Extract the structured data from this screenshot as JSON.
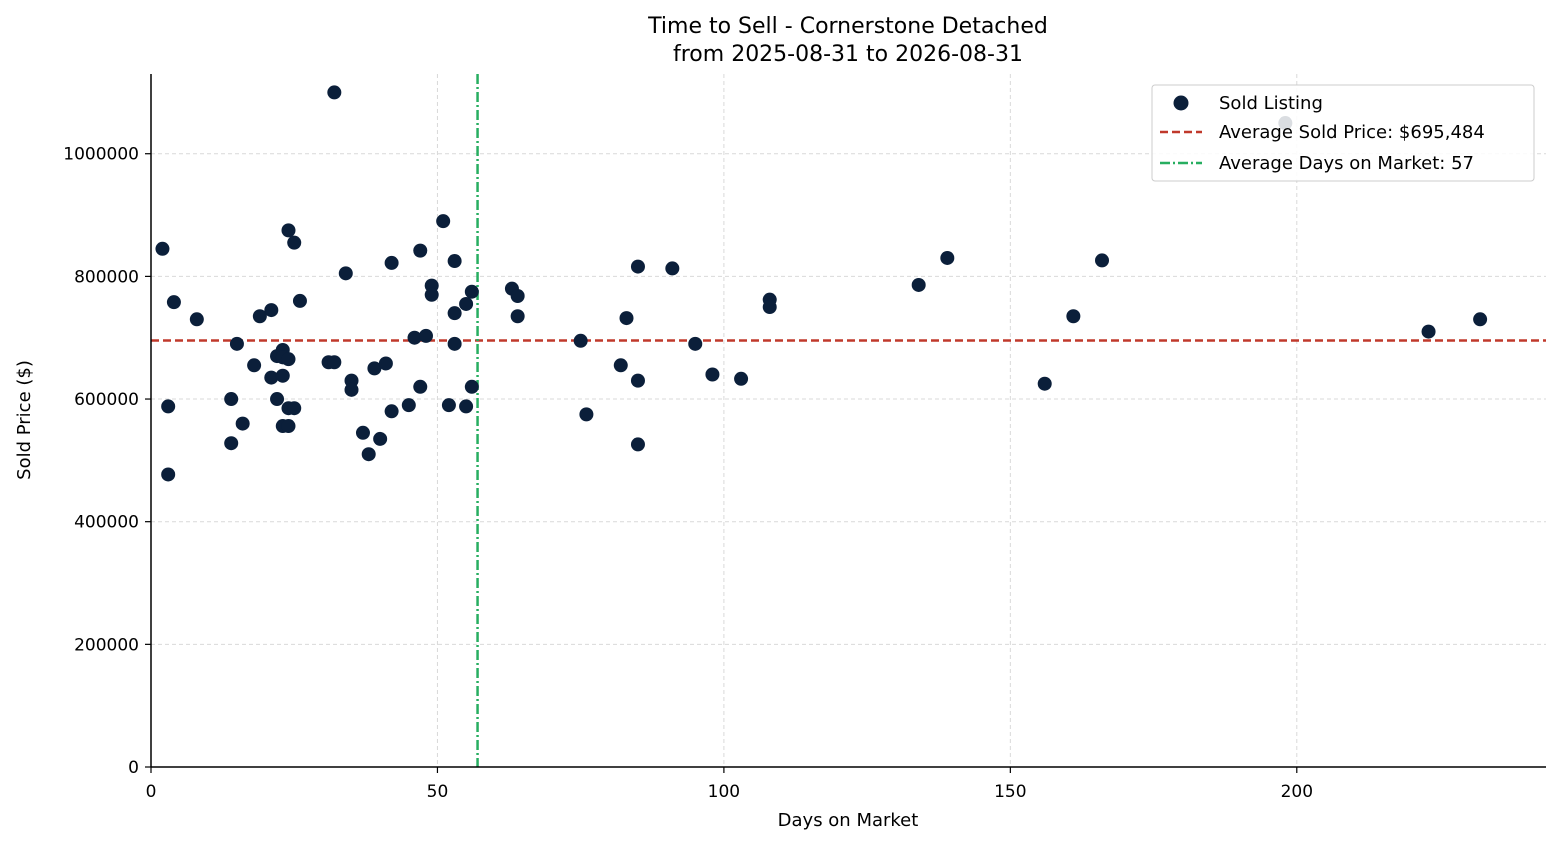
{
  "chart_data": {
    "type": "scatter",
    "title_line1": "Time to Sell - Cornerstone Detached",
    "title_line2": "from 2025-08-31 to 2026-08-31",
    "xlabel": "Days on Market",
    "ylabel": "Sold Price ($)",
    "xlim": [
      0,
      243.5
    ],
    "ylim": [
      0,
      1130000
    ],
    "x_ticks": [
      0,
      50,
      100,
      150,
      200
    ],
    "y_ticks": [
      0,
      200000,
      400000,
      600000,
      800000,
      1000000
    ],
    "grid": true,
    "legend_position": "top-right",
    "colors": {
      "points": "#0b1f3a",
      "avg_price_line": "#c0392b",
      "avg_days_line": "#27ae60"
    },
    "legend": {
      "points_label": "Sold Listing",
      "avg_price_label": "Average Sold Price: $695,484",
      "avg_days_label": "Average Days on Market: 57"
    },
    "avg_price": 695484,
    "avg_days": 57,
    "points": [
      [
        2,
        845000
      ],
      [
        3,
        588000
      ],
      [
        3,
        477000
      ],
      [
        4,
        758000
      ],
      [
        8,
        730000
      ],
      [
        14,
        600000
      ],
      [
        14,
        528000
      ],
      [
        15,
        690000
      ],
      [
        16,
        560000
      ],
      [
        18,
        655000
      ],
      [
        19,
        735000
      ],
      [
        21,
        745000
      ],
      [
        21,
        635000
      ],
      [
        22,
        670000
      ],
      [
        22,
        600000
      ],
      [
        23,
        680000
      ],
      [
        23,
        668000
      ],
      [
        23,
        638000
      ],
      [
        23,
        556000
      ],
      [
        24,
        875000
      ],
      [
        24,
        665000
      ],
      [
        24,
        585000
      ],
      [
        24,
        556000
      ],
      [
        25,
        855000
      ],
      [
        25,
        585000
      ],
      [
        26,
        760000
      ],
      [
        31,
        660000
      ],
      [
        32,
        660000
      ],
      [
        32,
        1100000
      ],
      [
        34,
        805000
      ],
      [
        35,
        630000
      ],
      [
        35,
        615000
      ],
      [
        37,
        545000
      ],
      [
        38,
        510000
      ],
      [
        39,
        650000
      ],
      [
        40,
        535000
      ],
      [
        41,
        658000
      ],
      [
        42,
        822000
      ],
      [
        42,
        580000
      ],
      [
        45,
        590000
      ],
      [
        46,
        700000
      ],
      [
        47,
        842000
      ],
      [
        47,
        620000
      ],
      [
        48,
        703000
      ],
      [
        49,
        785000
      ],
      [
        49,
        770000
      ],
      [
        51,
        890000
      ],
      [
        52,
        590000
      ],
      [
        53,
        825000
      ],
      [
        53,
        740000
      ],
      [
        53,
        690000
      ],
      [
        55,
        755000
      ],
      [
        55,
        588000
      ],
      [
        56,
        775000
      ],
      [
        56,
        620000
      ],
      [
        63,
        780000
      ],
      [
        64,
        768000
      ],
      [
        64,
        735000
      ],
      [
        75,
        695000
      ],
      [
        76,
        575000
      ],
      [
        82,
        655000
      ],
      [
        83,
        732000
      ],
      [
        85,
        816000
      ],
      [
        85,
        630000
      ],
      [
        85,
        526000
      ],
      [
        91,
        813000
      ],
      [
        95,
        690000
      ],
      [
        98,
        640000
      ],
      [
        103,
        633000
      ],
      [
        108,
        762000
      ],
      [
        108,
        750000
      ],
      [
        134,
        786000
      ],
      [
        139,
        830000
      ],
      [
        156,
        625000
      ],
      [
        161,
        735000
      ],
      [
        166,
        826000
      ],
      [
        198,
        1050000
      ],
      [
        223,
        710000
      ],
      [
        232,
        730000
      ]
    ]
  }
}
